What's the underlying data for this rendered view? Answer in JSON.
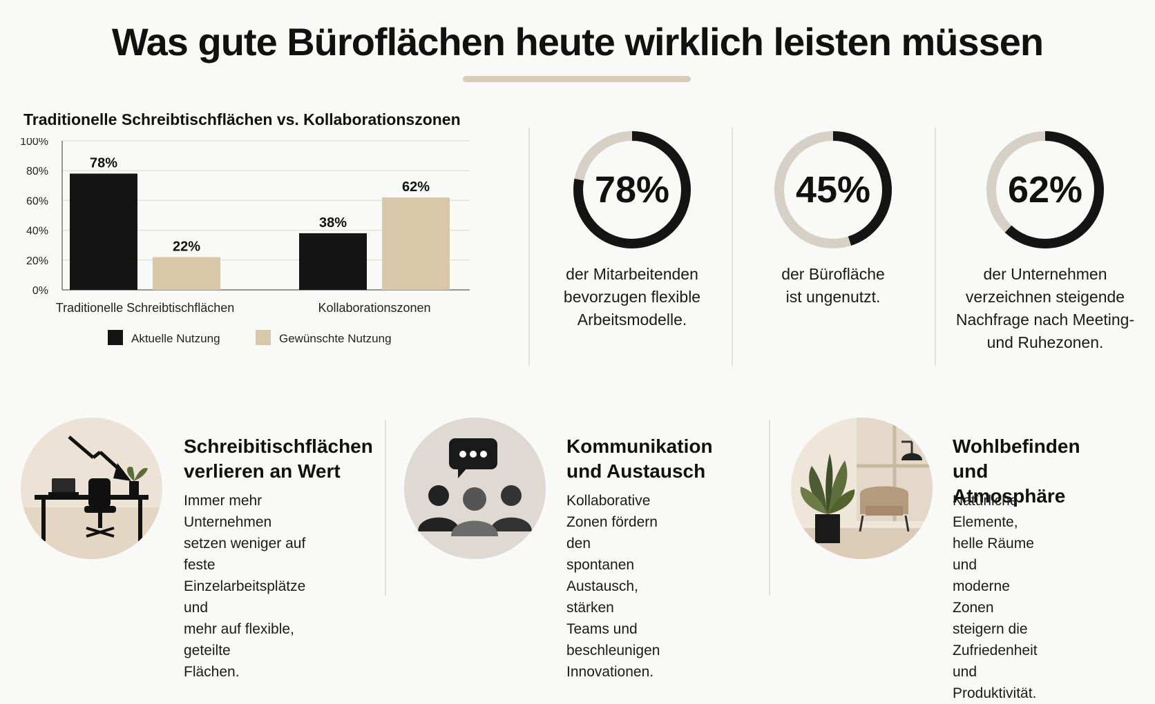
{
  "page_title": "Was gute Büroflächen heute wirklich leisten müssen",
  "colors": {
    "black": "#141414",
    "beige": "#d9c7a9",
    "ring_track": "#d7d0c6"
  },
  "chart_data": {
    "type": "bar",
    "title": "Traditionelle Schreibtischflächen vs. Kollaborationszonen",
    "categories": [
      "Traditionelle Schreibtischflächen",
      "Kollaborationszonen"
    ],
    "series": [
      {
        "name": "Aktuelle Nutzung",
        "values": [
          78,
          38
        ],
        "color": "#141414"
      },
      {
        "name": "Gewünschte Nutzung",
        "values": [
          22,
          62
        ],
        "color": "#d9c7a9"
      }
    ],
    "y_ticks": [
      "0%",
      "20%",
      "40%",
      "60%",
      "80%",
      "100%"
    ],
    "ylim": [
      0,
      100
    ],
    "unit": "%",
    "grid": true,
    "legend_position": "bottom"
  },
  "stats": [
    {
      "value": 78,
      "label": "78%",
      "caption": "der Mitarbeitenden\nbevorzugen flexible\nArbeitsmodelle."
    },
    {
      "value": 45,
      "label": "45%",
      "caption": "der Bürofläche\nist ungenutzt."
    },
    {
      "value": 62,
      "label": "62%",
      "caption": "der Unternehmen\nverzeichnen steigende\nNachfrage nach Meeting-\nund Ruhezonen."
    }
  ],
  "features": [
    {
      "icon": "desk-decline-icon",
      "title": "Schreibitischflächen\nverlieren an Wert",
      "text": "Immer mehr Unternehmen\nsetzen weniger auf feste\nEinzelarbeitsplätze und\nmehr auf flexible, geteilte\nFlächen."
    },
    {
      "icon": "team-communication-icon",
      "title": "Kommunikation\nund Austausch",
      "text": "Kollaborative Zonen fördern\nden spontanen Austausch,\nstärken Teams und\nbeschleunigen Innovationen."
    },
    {
      "icon": "plant-lounge-icon",
      "title": "Wohlbefinden und\nAtmosphäre",
      "text": "Natürliche Elemente,\nhelle Räume und moderne\nZonen steigern die\nZufriedenheit und\nProduktivität."
    }
  ]
}
